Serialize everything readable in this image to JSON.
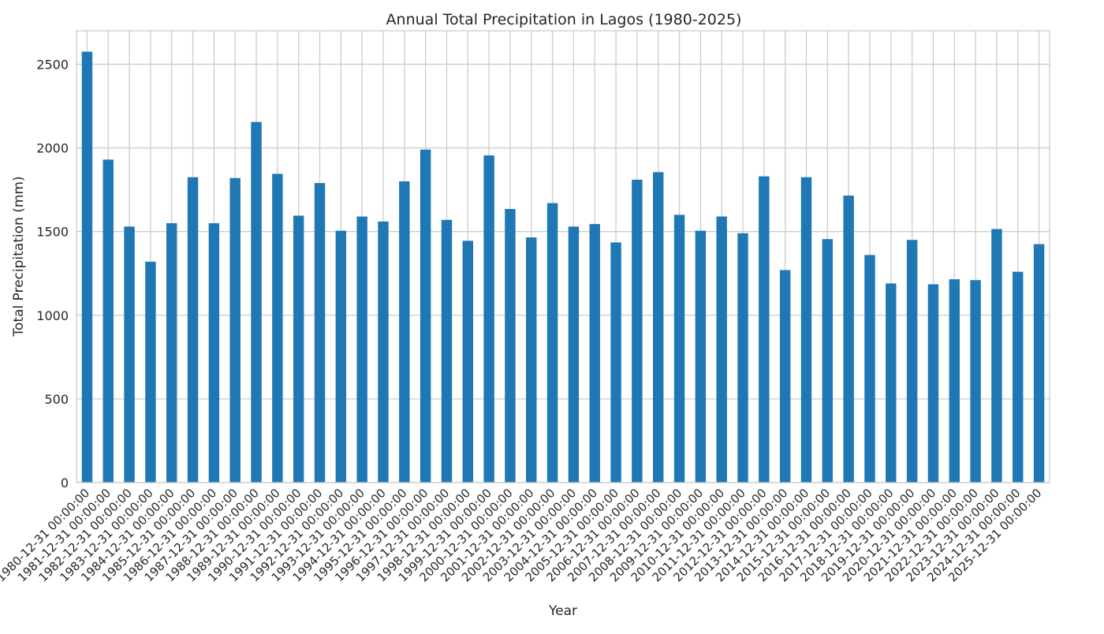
{
  "chart_data": {
    "type": "bar",
    "title": "Annual Total Precipitation in Lagos (1980-2025)",
    "xlabel": "Year",
    "ylabel": "Total Precipitation (mm)",
    "ylim": [
      0,
      2700
    ],
    "yticks": [
      0,
      500,
      1000,
      1500,
      2000,
      2500
    ],
    "grid": true,
    "legend": "none",
    "colors": {
      "bar": "#1f77b4",
      "grid": "#cccccc",
      "axis": "#cccccc",
      "text": "#262626"
    },
    "categories": [
      "1980-12-31 00:00:00",
      "1981-12-31 00:00:00",
      "1982-12-31 00:00:00",
      "1983-12-31 00:00:00",
      "1984-12-31 00:00:00",
      "1985-12-31 00:00:00",
      "1986-12-31 00:00:00",
      "1987-12-31 00:00:00",
      "1988-12-31 00:00:00",
      "1989-12-31 00:00:00",
      "1990-12-31 00:00:00",
      "1991-12-31 00:00:00",
      "1992-12-31 00:00:00",
      "1993-12-31 00:00:00",
      "1994-12-31 00:00:00",
      "1995-12-31 00:00:00",
      "1996-12-31 00:00:00",
      "1997-12-31 00:00:00",
      "1998-12-31 00:00:00",
      "1999-12-31 00:00:00",
      "2000-12-31 00:00:00",
      "2001-12-31 00:00:00",
      "2002-12-31 00:00:00",
      "2003-12-31 00:00:00",
      "2004-12-31 00:00:00",
      "2005-12-31 00:00:00",
      "2006-12-31 00:00:00",
      "2007-12-31 00:00:00",
      "2008-12-31 00:00:00",
      "2009-12-31 00:00:00",
      "2010-12-31 00:00:00",
      "2011-12-31 00:00:00",
      "2012-12-31 00:00:00",
      "2013-12-31 00:00:00",
      "2014-12-31 00:00:00",
      "2015-12-31 00:00:00",
      "2016-12-31 00:00:00",
      "2017-12-31 00:00:00",
      "2018-12-31 00:00:00",
      "2019-12-31 00:00:00",
      "2020-12-31 00:00:00",
      "2021-12-31 00:00:00",
      "2022-12-31 00:00:00",
      "2023-12-31 00:00:00",
      "2024-12-31 00:00:00",
      "2025-12-31 00:00:00"
    ],
    "values": [
      2575,
      1930,
      1530,
      1320,
      1550,
      1825,
      1550,
      1820,
      2155,
      1845,
      1595,
      1790,
      1505,
      1590,
      1560,
      1800,
      1990,
      1570,
      1445,
      1955,
      1635,
      1465,
      1670,
      1530,
      1545,
      1435,
      1810,
      1855,
      1600,
      1505,
      1590,
      1490,
      1830,
      1270,
      1825,
      1455,
      1715,
      1360,
      1190,
      1450,
      1185,
      1215,
      1210,
      1515,
      1260,
      1425
    ]
  }
}
